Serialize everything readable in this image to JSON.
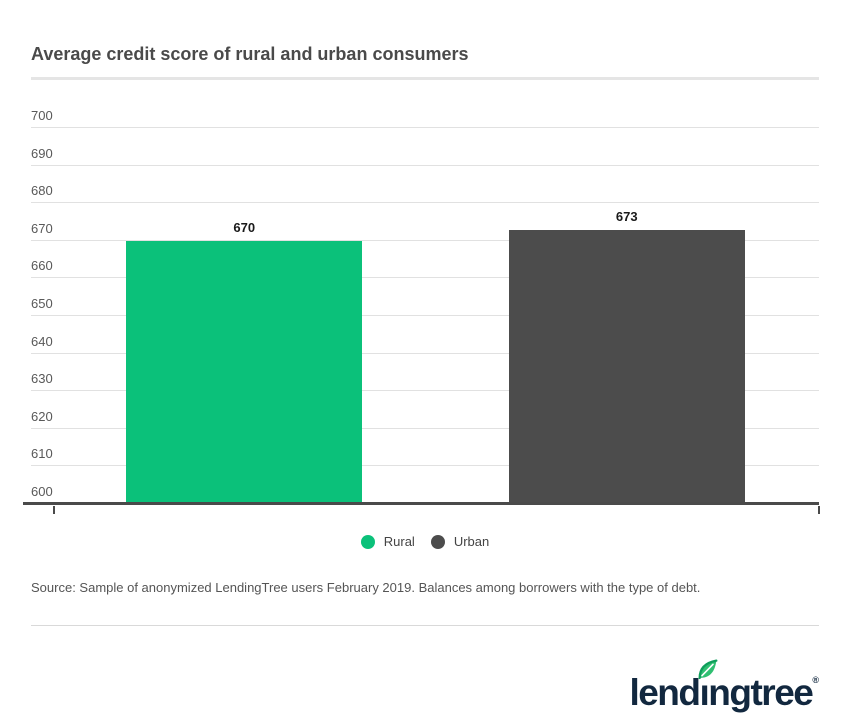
{
  "page": {
    "source": "Source: Sample of anonymized LendingTree users February 2019. Balances among borrowers with the type of debt.",
    "logo": {
      "text": "lendingtree",
      "registered": "®",
      "navy": "#12283f",
      "leaf_dark_green": "#0e9e5b",
      "leaf_light_green": "#2fbf71"
    }
  },
  "chart_data": {
    "type": "bar",
    "title": "Average credit score of rural and urban consumers",
    "categories": [
      "Rural",
      "Urban"
    ],
    "values": [
      670,
      673
    ],
    "value_labels": [
      "670",
      "673"
    ],
    "bar_colors": [
      "#0bc17a",
      "#4c4c4c"
    ],
    "legend": [
      {
        "label": "Rural",
        "color": "#0bc17a"
      },
      {
        "label": "Urban",
        "color": "#4c4c4c"
      }
    ],
    "legend_position": "bottom",
    "ylim": [
      600,
      700
    ],
    "ytick_step": 10,
    "xlabel": "",
    "ylabel": "",
    "grid": true
  }
}
